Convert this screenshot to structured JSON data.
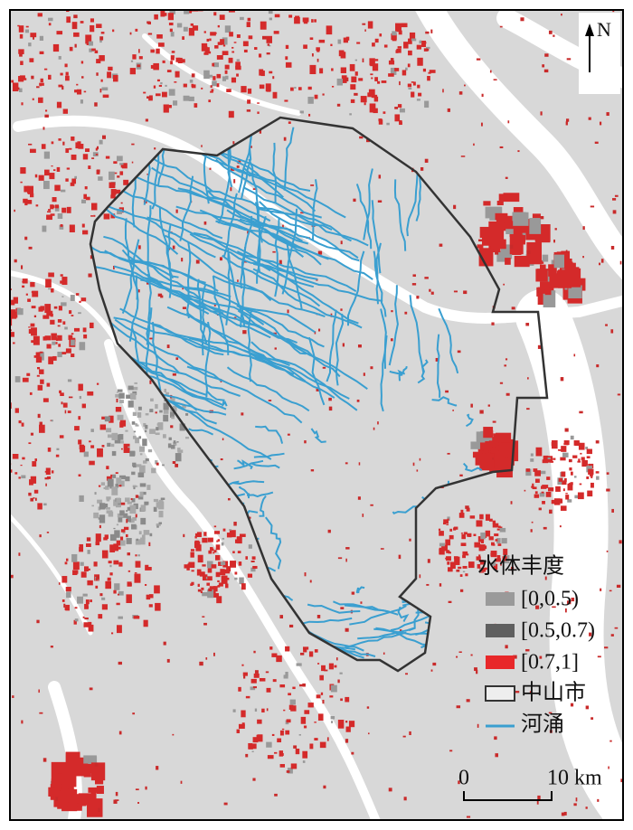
{
  "north_arrow": "N",
  "legend": {
    "title": "水体丰度",
    "items": [
      {
        "label": "[0,0.5)"
      },
      {
        "label": "[0.5,0.7)"
      },
      {
        "label": "[0.7,1]"
      },
      {
        "label": "中山市"
      },
      {
        "label": "河涌"
      }
    ]
  },
  "scale_bar": {
    "start": "0",
    "end": "10 km"
  }
}
